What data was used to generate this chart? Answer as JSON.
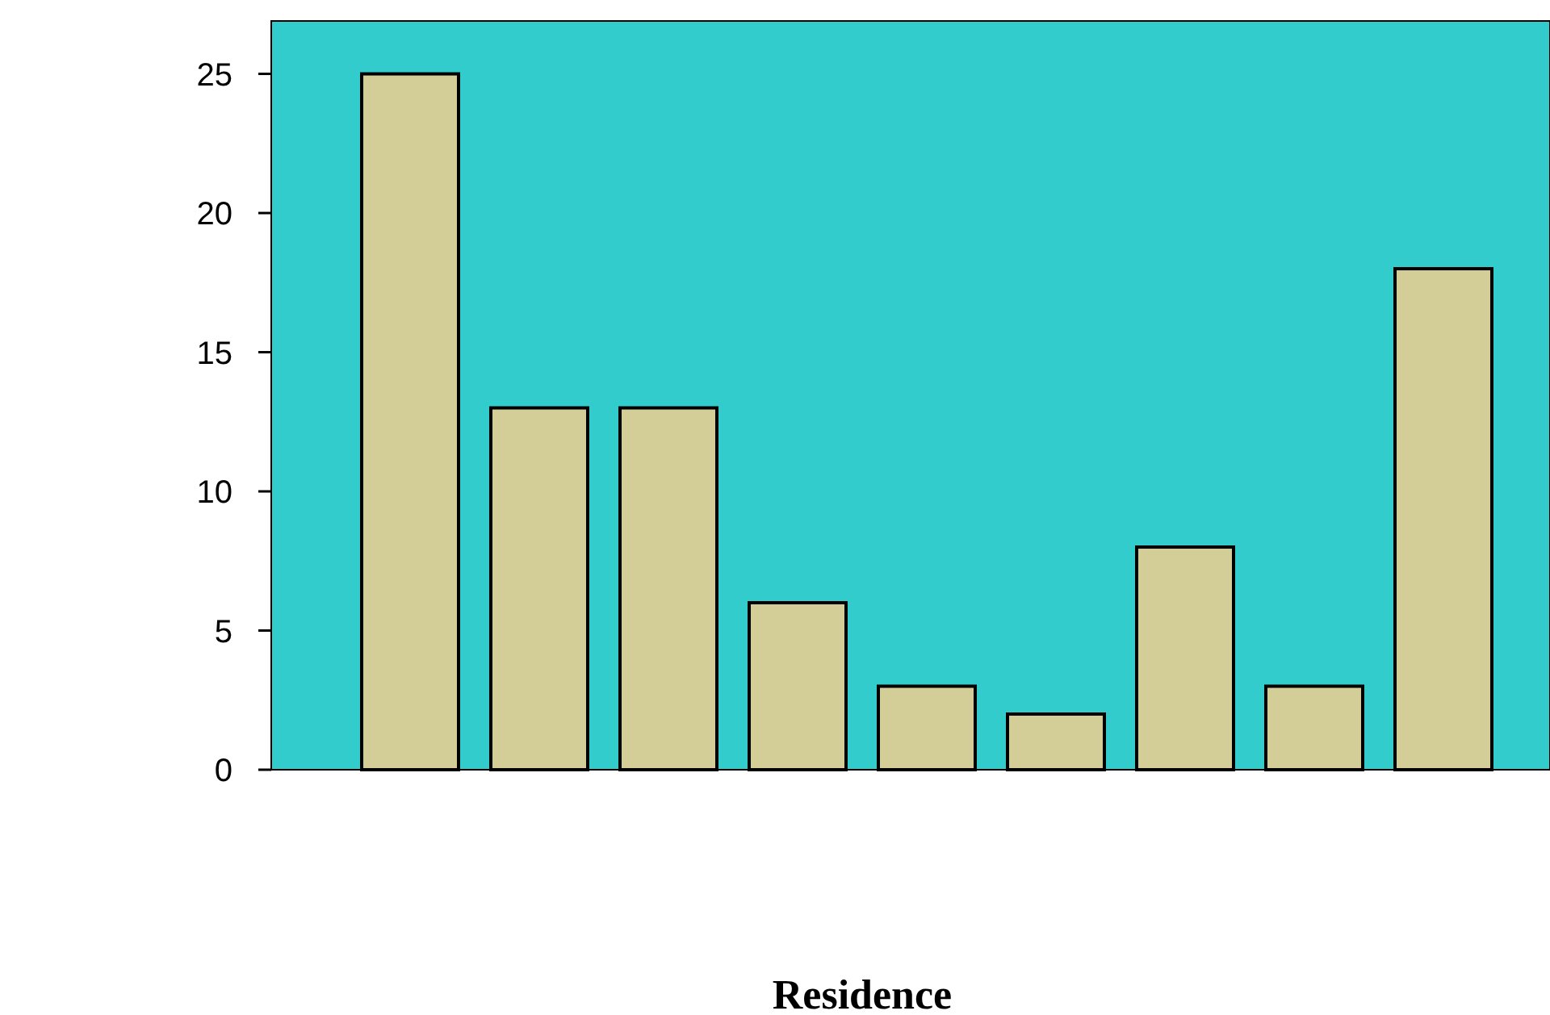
{
  "chart_data": {
    "type": "bar",
    "xlabel": "Residence",
    "categories": [
      null,
      null,
      null,
      null,
      null,
      null,
      null,
      null,
      null
    ],
    "values": [
      25,
      13,
      13,
      6,
      3,
      2,
      8,
      3,
      18
    ],
    "color": "#d3cd98",
    "ylim": [
      0,
      26.9
    ],
    "yticks": [
      0,
      5,
      10,
      15,
      20,
      25
    ]
  }
}
